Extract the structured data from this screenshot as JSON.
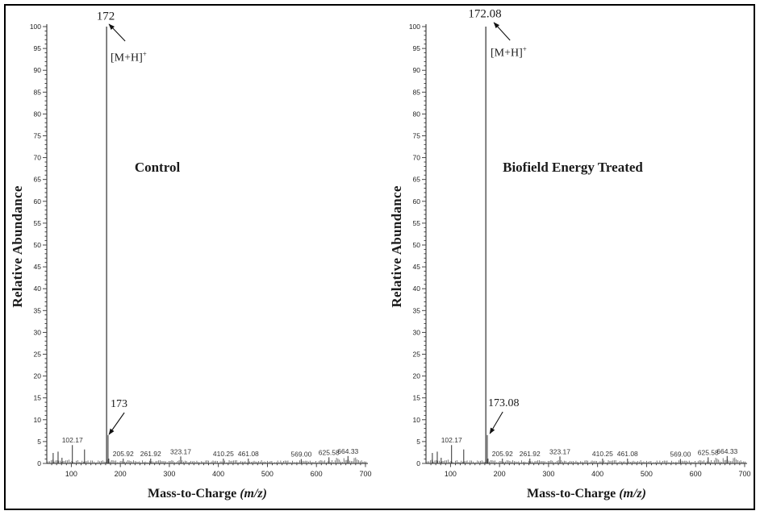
{
  "figure": {
    "background": "#ffffff",
    "border_color": "#000000",
    "ink_color": "#1a1a1a",
    "peak_color": "#4d4d4d"
  },
  "chart_data": [
    {
      "type": "line",
      "variant": "mass_spectrum",
      "title": "Control",
      "xlabel": "Mass-to-Charge",
      "xlabel_suffix_italic": "(m/z)",
      "ylabel": "Relative Abundance",
      "xlim": [
        50,
        705
      ],
      "ylim": [
        0,
        100
      ],
      "x_major_ticks": [
        100,
        200,
        300,
        400,
        500,
        600,
        700
      ],
      "x_minor_tick_step": 10,
      "y_major_tick_step": 5,
      "y_minor_tick_step": 1,
      "base_peak": {
        "mz": 172,
        "intensity": 100,
        "label": "172"
      },
      "adduct_annotation": "[M+H]",
      "adduct_charge": "+",
      "isotope_peak": {
        "mz": 173,
        "intensity": 6.5,
        "label": "173"
      },
      "peaks": [
        {
          "mz": 63,
          "intensity": 2.4,
          "label": ""
        },
        {
          "mz": 73,
          "intensity": 2.7,
          "label": ""
        },
        {
          "mz": 81,
          "intensity": 1.3,
          "label": ""
        },
        {
          "mz": 102.17,
          "intensity": 4.2,
          "label": "102.17"
        },
        {
          "mz": 127,
          "intensity": 3.2,
          "label": ""
        },
        {
          "mz": 176.5,
          "intensity": 1.1,
          "label": ""
        },
        {
          "mz": 205.92,
          "intensity": 1.1,
          "label": "205.92"
        },
        {
          "mz": 261.92,
          "intensity": 1.1,
          "label": "261.92"
        },
        {
          "mz": 323.17,
          "intensity": 1.6,
          "label": "323.17"
        },
        {
          "mz": 410.25,
          "intensity": 1.1,
          "label": "410.25"
        },
        {
          "mz": 461.08,
          "intensity": 1.1,
          "label": "461.08"
        },
        {
          "mz": 569,
          "intensity": 1.0,
          "label": "569.00"
        },
        {
          "mz": 625.58,
          "intensity": 1.4,
          "label": "625.58"
        },
        {
          "mz": 664.33,
          "intensity": 1.7,
          "label": "664.33"
        }
      ],
      "noise": {
        "seed": 11,
        "step_mz": 3,
        "base": 0.2,
        "jitter": 0.55
      }
    },
    {
      "type": "line",
      "variant": "mass_spectrum",
      "title": "Biofield Energy Treated",
      "xlabel": "Mass-to-Charge",
      "xlabel_suffix_italic": "(m/z)",
      "ylabel": "Relative Abundance",
      "xlim": [
        50,
        705
      ],
      "ylim": [
        0,
        100
      ],
      "x_major_ticks": [
        100,
        200,
        300,
        400,
        500,
        600,
        700
      ],
      "x_minor_tick_step": 10,
      "y_major_tick_step": 5,
      "y_minor_tick_step": 1,
      "base_peak": {
        "mz": 172.08,
        "intensity": 100,
        "label": "172.08"
      },
      "adduct_annotation": "[M+H]",
      "adduct_charge": "+",
      "isotope_peak": {
        "mz": 173.08,
        "intensity": 6.5,
        "label": "173.08"
      },
      "peaks": [
        {
          "mz": 63,
          "intensity": 2.4,
          "label": ""
        },
        {
          "mz": 73,
          "intensity": 2.7,
          "label": ""
        },
        {
          "mz": 81,
          "intensity": 1.3,
          "label": ""
        },
        {
          "mz": 102.17,
          "intensity": 4.2,
          "label": "102.17"
        },
        {
          "mz": 127,
          "intensity": 3.2,
          "label": ""
        },
        {
          "mz": 176.5,
          "intensity": 1.1,
          "label": ""
        },
        {
          "mz": 205.92,
          "intensity": 1.1,
          "label": "205.92"
        },
        {
          "mz": 261.92,
          "intensity": 1.1,
          "label": "261.92"
        },
        {
          "mz": 323.17,
          "intensity": 1.6,
          "label": "323.17"
        },
        {
          "mz": 410.25,
          "intensity": 1.1,
          "label": "410.25"
        },
        {
          "mz": 461.08,
          "intensity": 1.1,
          "label": "461.08"
        },
        {
          "mz": 569,
          "intensity": 1.0,
          "label": "569.00"
        },
        {
          "mz": 625.58,
          "intensity": 1.4,
          "label": "625.58"
        },
        {
          "mz": 664.33,
          "intensity": 1.7,
          "label": "664.33"
        }
      ],
      "noise": {
        "seed": 11,
        "step_mz": 3,
        "base": 0.2,
        "jitter": 0.55
      }
    }
  ]
}
